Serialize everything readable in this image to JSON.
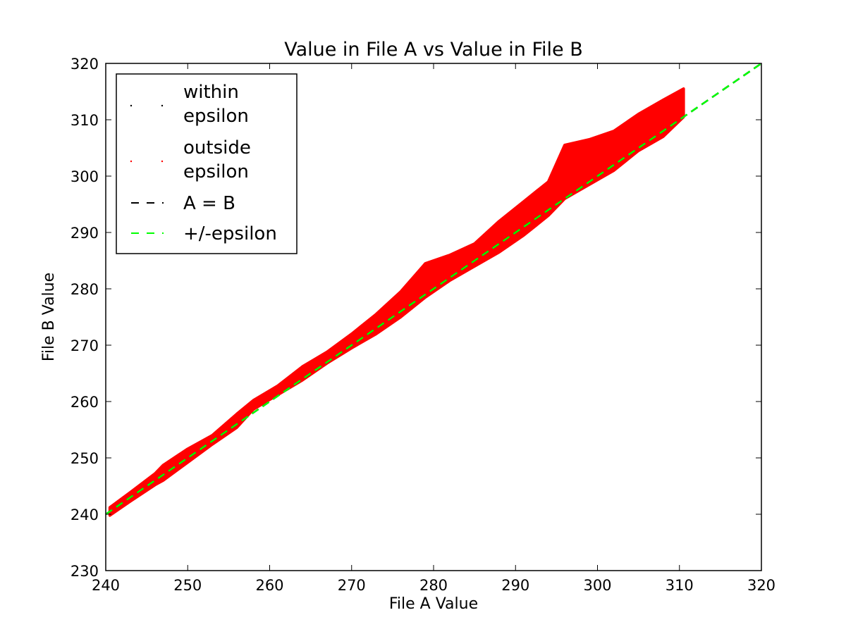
{
  "chart_data": {
    "type": "scatter",
    "title": "Value in File A vs Value in File B",
    "xlabel": "File A Value",
    "ylabel": "File B Value",
    "xlim": [
      240,
      320
    ],
    "ylim": [
      230,
      320
    ],
    "x_ticks": [
      "240",
      "250",
      "260",
      "270",
      "280",
      "290",
      "300",
      "310",
      "320"
    ],
    "y_ticks": [
      "230",
      "240",
      "250",
      "260",
      "270",
      "280",
      "290",
      "300",
      "310",
      "320"
    ],
    "grid": false,
    "legend_position": "top-left",
    "series": [
      {
        "name": "within epsilon",
        "kind": "points",
        "color": "#000000",
        "points": []
      },
      {
        "name": "outside epsilon",
        "kind": "points",
        "color": "#ff0000",
        "band": [
          {
            "x": 240.5,
            "lower": 239.8,
            "upper": 241.2
          },
          {
            "x": 243,
            "lower": 242.3,
            "upper": 243.9
          },
          {
            "x": 246,
            "lower": 245.2,
            "upper": 247.2
          },
          {
            "x": 247,
            "lower": 246.0,
            "upper": 248.7
          },
          {
            "x": 250,
            "lower": 249.2,
            "upper": 251.6
          },
          {
            "x": 253,
            "lower": 252.4,
            "upper": 254.0
          },
          {
            "x": 256,
            "lower": 255.4,
            "upper": 257.8
          },
          {
            "x": 258,
            "lower": 258.6,
            "upper": 260.2
          },
          {
            "x": 261,
            "lower": 261.2,
            "upper": 262.8
          },
          {
            "x": 264,
            "lower": 263.8,
            "upper": 266.2
          },
          {
            "x": 267,
            "lower": 266.8,
            "upper": 268.8
          },
          {
            "x": 270,
            "lower": 269.5,
            "upper": 272.0
          },
          {
            "x": 273,
            "lower": 272.0,
            "upper": 275.5
          },
          {
            "x": 276,
            "lower": 275.0,
            "upper": 279.5
          },
          {
            "x": 279,
            "lower": 278.5,
            "upper": 284.5
          },
          {
            "x": 282,
            "lower": 281.5,
            "upper": 286.0
          },
          {
            "x": 285,
            "lower": 284.0,
            "upper": 288.0
          },
          {
            "x": 288,
            "lower": 286.5,
            "upper": 292.0
          },
          {
            "x": 291,
            "lower": 289.5,
            "upper": 295.5
          },
          {
            "x": 294,
            "lower": 293.0,
            "upper": 299.0
          },
          {
            "x": 296,
            "lower": 296.0,
            "upper": 305.5
          },
          {
            "x": 299,
            "lower": 298.5,
            "upper": 306.5
          },
          {
            "x": 302,
            "lower": 301.0,
            "upper": 308.0
          },
          {
            "x": 305,
            "lower": 304.5,
            "upper": 311.0
          },
          {
            "x": 308,
            "lower": 307.0,
            "upper": 313.5
          },
          {
            "x": 310.5,
            "lower": 310.5,
            "upper": 315.5
          }
        ]
      },
      {
        "name": "A = B",
        "kind": "dashed-line",
        "color": "#000000",
        "x": [
          240,
          320
        ],
        "y": [
          240,
          320
        ]
      },
      {
        "name": "+/-epsilon",
        "kind": "dashed-line",
        "color": "#00ff00",
        "x": [
          240,
          320
        ],
        "y": [
          240,
          320
        ]
      }
    ],
    "legend": {
      "entries": [
        {
          "line1": "within",
          "line2": "epsilon",
          "marker": "dots",
          "color": "#000000"
        },
        {
          "line1": "outside",
          "line2": "epsilon",
          "marker": "dots",
          "color": "#ff0000"
        },
        {
          "line1": "A = B",
          "line2": "",
          "marker": "dash",
          "color": "#000000"
        },
        {
          "line1": "+/-epsilon",
          "line2": "",
          "marker": "dash",
          "color": "#00ff00"
        }
      ]
    }
  }
}
